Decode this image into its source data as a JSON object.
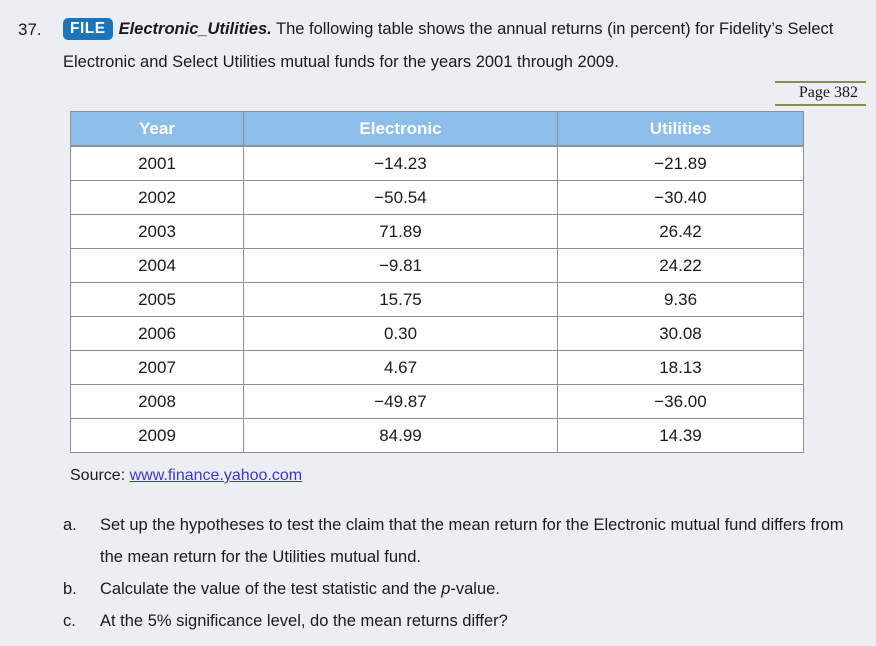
{
  "problem": {
    "number": "37.",
    "file_badge_label": "FILE",
    "file_name": "Electronic_Utilities.",
    "intro": "The following table shows the annual returns (in percent) for Fidelity’s Select Electronic and Select Utilities mutual funds for the years 2001 through 2009."
  },
  "page_ref": "Page 382",
  "table": {
    "headers": [
      "Year",
      "Electronic",
      "Utilities"
    ],
    "rows": [
      [
        "2001",
        "−14.23",
        "−21.89"
      ],
      [
        "2002",
        "−50.54",
        "−30.40"
      ],
      [
        "2003",
        "71.89",
        "26.42"
      ],
      [
        "2004",
        "−9.81",
        "24.22"
      ],
      [
        "2005",
        "15.75",
        "9.36"
      ],
      [
        "2006",
        "0.30",
        "30.08"
      ],
      [
        "2007",
        "4.67",
        "18.13"
      ],
      [
        "2008",
        "−49.87",
        "−36.00"
      ],
      [
        "2009",
        "84.99",
        "14.39"
      ]
    ]
  },
  "source": {
    "label": "Source:",
    "link_text": "www.finance.yahoo.com"
  },
  "questions": {
    "a": {
      "letter": "a.",
      "text": "Set up the hypotheses to test the claim that the mean return for the Electronic mutual fund differs from the mean return for the Utilities mutual fund."
    },
    "b": {
      "letter": "b.",
      "pre": "Calculate the value of the test statistic and the ",
      "italic": "p",
      "post": "-value."
    },
    "c": {
      "letter": "c.",
      "text": "At the 5% significance level, do the mean returns differ?"
    }
  },
  "colors": {
    "page_background": "#edeef3",
    "file_badge_blue": "#1b75bc",
    "table_header_blue": "#8cbee9",
    "table_border_gray": "#8e9097",
    "page_ref_rule_olive": "#8a8a49",
    "link_blue": "#3838cf",
    "text": "#1a1a1a"
  }
}
